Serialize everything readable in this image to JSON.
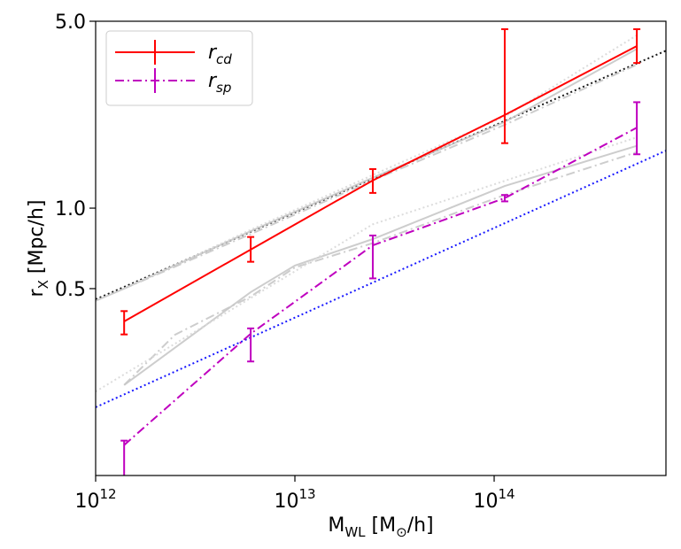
{
  "chart_data": {
    "type": "line",
    "xlabel": "M_{WL} [M_{⊙}/h]",
    "ylabel": "r_{X} [Mpc/h]",
    "xscale": "log",
    "yscale": "log",
    "xlim": [
      1000000000000.0,
      728000000000000.0
    ],
    "ylim": [
      0.1,
      5.0
    ],
    "xticks": [
      {
        "value": 1000000000000.0,
        "label": "10^{12}"
      },
      {
        "value": 10000000000000.0,
        "label": "10^{13}"
      },
      {
        "value": 100000000000000.0,
        "label": "10^{14}"
      }
    ],
    "yticks": [
      0.5,
      {
        "value": 1.0,
        "label": "1.0"
      },
      {
        "value": 5.0,
        "label": "5.0"
      }
    ],
    "legend": "upper left",
    "series": [
      {
        "x": [
          1000000000000.0,
          728000000000000.0
        ],
        "values": [
          0.456,
          3.88
        ],
        "color": "#000000",
        "style": "dotted"
      },
      {
        "x": [
          1000000000000.0,
          728000000000000.0
        ],
        "values": [
          0.18,
          1.64
        ],
        "color": "#0000ff",
        "style": "dotted"
      },
      {
        "x": [
          1000000000000.0,
          1390000000000.0,
          6000000000000.0,
          24600000000000.0,
          113000000000000.0,
          520000000000000.0
        ],
        "values": [
          0.45,
          0.5,
          0.82,
          1.3,
          2.1,
          3.94
        ],
        "color": "#c8c8c8",
        "style": "solid"
      },
      {
        "x": [
          1390000000000.0,
          6000000000000.0,
          24600000000000.0,
          113000000000000.0,
          520000000000000.0
        ],
        "values": [
          0.5,
          0.8,
          1.27,
          2.05,
          3.44
        ],
        "color": "#c8c8c8",
        "style": "dashdot"
      },
      {
        "x": [
          1390000000000.0,
          6000000000000.0,
          24600000000000.0,
          113000000000000.0,
          520000000000000.0
        ],
        "values": [
          0.5,
          0.83,
          1.33,
          2.2,
          4.43
        ],
        "color": "#d8d8d8",
        "style": "dotted"
      },
      {
        "x": [
          1390000000000.0,
          6000000000000.0,
          10000000000000.0,
          24600000000000.0,
          113000000000000.0,
          520000000000000.0
        ],
        "values": [
          0.218,
          0.485,
          0.61,
          0.766,
          1.21,
          1.71
        ],
        "color": "#c8c8c8",
        "style": "solid"
      },
      {
        "x": [
          1390000000000.0,
          2500000000000.0,
          6000000000000.0,
          10000000000000.0,
          24600000000000.0,
          113000000000000.0,
          520000000000000.0
        ],
        "values": [
          0.218,
          0.336,
          0.467,
          0.6,
          0.74,
          1.12,
          1.62
        ],
        "color": "#c8c8c8",
        "style": "dashdot"
      },
      {
        "x": [
          1000000000000.0,
          24600000000000.0,
          520000000000000.0
        ],
        "values": [
          0.206,
          0.87,
          1.84
        ],
        "color": "#d8d8d8",
        "style": "dotted"
      },
      {
        "name": "r_{cd}",
        "x": [
          1390000000000.0,
          6000000000000.0,
          24600000000000.0,
          113000000000000.0,
          520000000000000.0
        ],
        "values": [
          0.377,
          0.7,
          1.27,
          2.23,
          4.04
        ],
        "yerr_minus": [
          0.04,
          0.07,
          0.13,
          0.48,
          0.55
        ],
        "yerr_plus": [
          0.035,
          0.08,
          0.13,
          2.44,
          0.63
        ],
        "color": "#ff0000",
        "style": "solid"
      },
      {
        "name": "r_{sp}",
        "x": [
          1390000000000.0,
          6000000000000.0,
          24600000000000.0,
          113000000000000.0,
          520000000000000.0
        ],
        "values": [
          0.13,
          0.339,
          0.726,
          1.09,
          2.0
        ],
        "yerr_minus": [
          0.06,
          0.072,
          0.18,
          0.03,
          0.41
        ],
        "yerr_plus": [
          0.005,
          0.016,
          0.064,
          0.03,
          0.49
        ],
        "color": "#bf00bf",
        "style": "dashdot"
      }
    ]
  }
}
